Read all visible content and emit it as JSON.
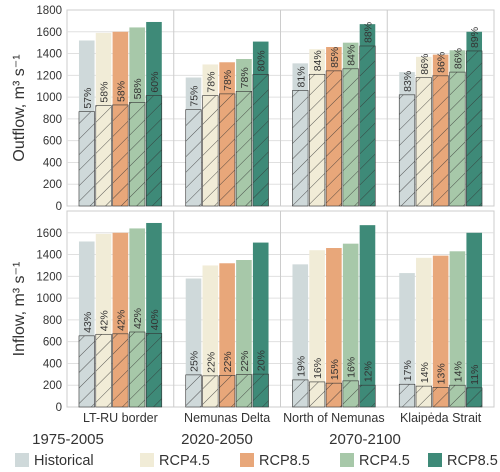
{
  "chart_data": {
    "type": "bar",
    "categories": [
      "LT-RU border",
      "Nemunas Delta",
      "North of Nemunas",
      "Klaipėda Strait"
    ],
    "period_labels": [
      "1975-2005",
      "2020-2050",
      "2070-2100"
    ],
    "legend": [
      {
        "label": "Historical",
        "color": "#cfd9da"
      },
      {
        "label": "RCP4.5",
        "color": "#f1ecd7"
      },
      {
        "label": "RCP8.5",
        "color": "#e8a77a"
      },
      {
        "label": "RCP4.5",
        "color": "#a7c8a9"
      },
      {
        "label": "RCP8.5",
        "color": "#3e8a78"
      }
    ],
    "ylim": [
      0,
      1800
    ],
    "yticks": [
      0,
      200,
      400,
      600,
      800,
      1000,
      1200,
      1400,
      1600,
      1800
    ],
    "panels": [
      {
        "ylabel": "Outflow, m³ s⁻¹",
        "totals": [
          [
            1520,
            1590,
            1600,
            1640,
            1690
          ],
          [
            1180,
            1300,
            1320,
            1350,
            1510
          ],
          [
            1310,
            1440,
            1460,
            1500,
            1670
          ],
          [
            1230,
            1370,
            1390,
            1430,
            1600
          ]
        ],
        "shares": [
          [
            "57%",
            "58%",
            "58%",
            "58%",
            "60%"
          ],
          [
            "75%",
            "78%",
            "78%",
            "78%",
            "80%"
          ],
          [
            "81%",
            "84%",
            "85%",
            "84%",
            "88%"
          ],
          [
            "83%",
            "86%",
            "86%",
            "86%",
            "89%"
          ]
        ]
      },
      {
        "ylabel": "Inflow, m³ s⁻¹",
        "totals": [
          [
            1520,
            1590,
            1600,
            1640,
            1690
          ],
          [
            1180,
            1300,
            1320,
            1350,
            1510
          ],
          [
            1310,
            1440,
            1460,
            1500,
            1670
          ],
          [
            1230,
            1370,
            1390,
            1430,
            1600
          ]
        ],
        "shares": [
          [
            "43%",
            "42%",
            "42%",
            "42%",
            "40%"
          ],
          [
            "25%",
            "22%",
            "22%",
            "22%",
            "20%"
          ],
          [
            "19%",
            "16%",
            "15%",
            "16%",
            "12%"
          ],
          [
            "17%",
            "14%",
            "13%",
            "14%",
            "11%"
          ]
        ]
      }
    ]
  }
}
